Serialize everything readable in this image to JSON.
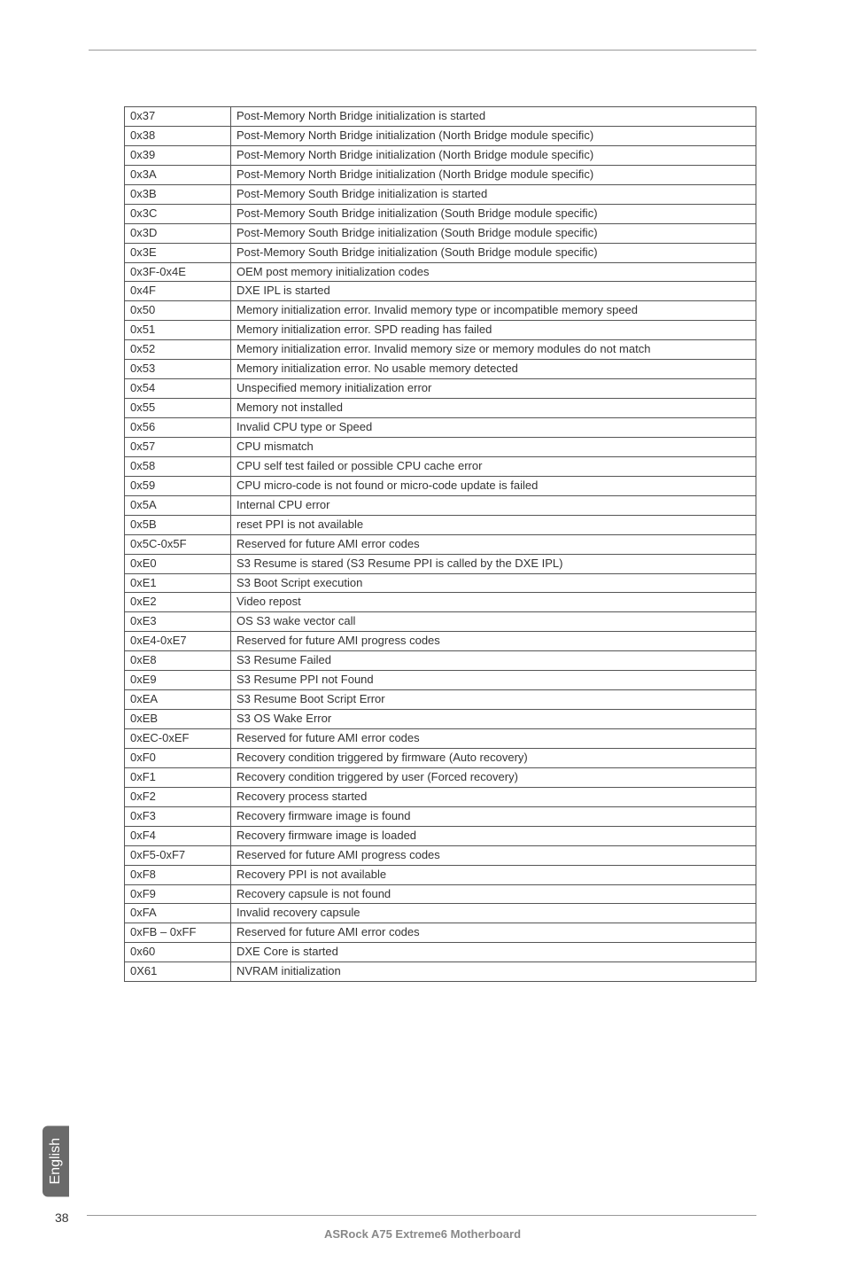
{
  "page_number": "38",
  "side_tab": "English",
  "footer": "ASRock  A75 Extreme6  Motherboard",
  "table": {
    "rows": [
      [
        "0x37",
        "Post-Memory North Bridge initialization is started"
      ],
      [
        "0x38",
        "Post-Memory North Bridge initialization (North Bridge module specific)"
      ],
      [
        "0x39",
        "Post-Memory North Bridge initialization (North Bridge module specific)"
      ],
      [
        "0x3A",
        "Post-Memory North Bridge initialization (North Bridge module specific)"
      ],
      [
        "0x3B",
        "Post-Memory South Bridge initialization is started"
      ],
      [
        "0x3C",
        "Post-Memory South Bridge initialization (South Bridge module specific)"
      ],
      [
        "0x3D",
        "Post-Memory South Bridge initialization (South Bridge module specific)"
      ],
      [
        "0x3E",
        "Post-Memory South Bridge initialization (South Bridge module specific)"
      ],
      [
        "0x3F-0x4E",
        "OEM post memory initialization codes"
      ],
      [
        "0x4F",
        "DXE IPL is started"
      ],
      [
        "0x50",
        "Memory initialization error. Invalid memory type or incompatible memory speed"
      ],
      [
        "0x51",
        "Memory initialization error. SPD reading has failed"
      ],
      [
        "0x52",
        "Memory initialization error. Invalid memory size or memory modules do not match"
      ],
      [
        "0x53",
        "Memory initialization error. No usable memory detected"
      ],
      [
        "0x54",
        "Unspecified memory initialization error"
      ],
      [
        "0x55",
        "Memory not installed"
      ],
      [
        "0x56",
        "Invalid CPU type or Speed"
      ],
      [
        "0x57",
        "CPU mismatch"
      ],
      [
        "0x58",
        "CPU self test failed or possible CPU cache error"
      ],
      [
        "0x59",
        "CPU micro-code is not found or micro-code update is failed"
      ],
      [
        "0x5A",
        "Internal CPU error"
      ],
      [
        "0x5B",
        "reset PPI is  not available"
      ],
      [
        "0x5C-0x5F",
        "Reserved for future AMI error codes"
      ],
      [
        "0xE0",
        "S3 Resume is stared (S3 Resume PPI is called by the DXE IPL)"
      ],
      [
        "0xE1",
        "S3 Boot Script execution"
      ],
      [
        "0xE2",
        "Video repost"
      ],
      [
        "0xE3",
        "OS S3 wake vector call"
      ],
      [
        "0xE4-0xE7",
        "Reserved for future AMI progress codes"
      ],
      [
        "0xE8",
        "S3 Resume Failed"
      ],
      [
        "0xE9",
        "S3 Resume PPI not Found"
      ],
      [
        "0xEA",
        "S3 Resume Boot Script Error"
      ],
      [
        "0xEB",
        "S3 OS Wake Error"
      ],
      [
        "0xEC-0xEF",
        "Reserved for future AMI error codes"
      ],
      [
        "0xF0",
        "Recovery condition triggered by firmware (Auto recovery)"
      ],
      [
        "0xF1",
        "Recovery condition triggered by user (Forced recovery)"
      ],
      [
        "0xF2",
        "Recovery process started"
      ],
      [
        "0xF3",
        "Recovery firmware image is found"
      ],
      [
        "0xF4",
        "Recovery firmware image is loaded"
      ],
      [
        "0xF5-0xF7",
        "Reserved for future AMI progress codes"
      ],
      [
        "0xF8",
        "Recovery PPI is not available"
      ],
      [
        "0xF9",
        "Recovery capsule is not found"
      ],
      [
        "0xFA",
        "Invalid recovery capsule"
      ],
      [
        "0xFB – 0xFF",
        "Reserved for future AMI error codes"
      ],
      [
        "0x60",
        "DXE Core is started"
      ],
      [
        "0X61",
        "NVRAM initialization"
      ]
    ]
  }
}
